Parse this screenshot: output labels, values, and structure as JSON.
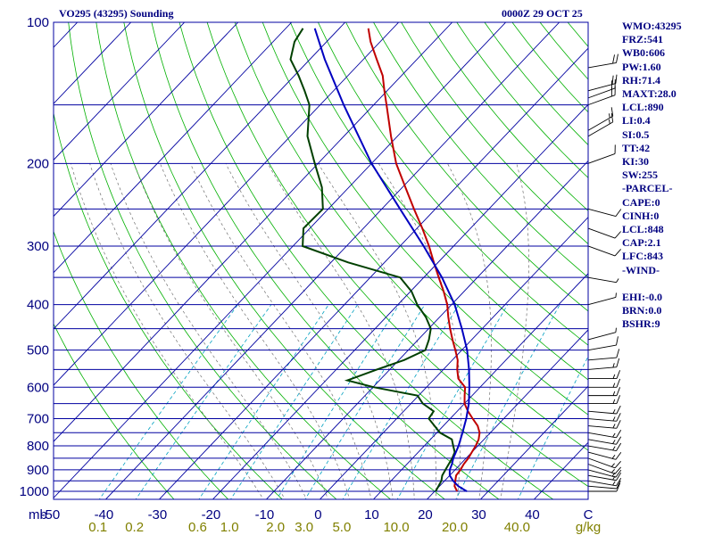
{
  "header": {
    "station": "VO295 (43295) Sounding",
    "time": "0000Z 29 OCT 25"
  },
  "indices": [
    "WMO:43295",
    "FRZ:541",
    "WB0:606",
    "PW:1.60",
    "RH:71.4",
    "MAXT:28.0",
    "LCL:890",
    "LI:0.4",
    "SI:0.5",
    "TT:42",
    "KI:30",
    "SW:255",
    "-PARCEL-",
    "CAPE:0",
    "CINH:0",
    "LCL:848",
    "CAP:2.1",
    "LFC:843",
    "-WIND-",
    "",
    "EHI:-0.0",
    "BRN:0.0",
    "BSHR:9"
  ],
  "colors": {
    "temperature": "#c00000",
    "dewpoint": "#004000",
    "parcel": "#0000c0",
    "isobar": "#0000a0",
    "isotherm": "#0000a0",
    "dry_adiabat": "#00b000",
    "moist_adiabat": "#707070",
    "mixing_ratio": "#00a0c0",
    "header_text": "#000080",
    "axis_text": "#000080",
    "mixing_label": "#808000"
  },
  "chart_data": {
    "type": "line",
    "subtype": "skew-T log-P",
    "title": "VO295 (43295) Sounding",
    "pressure_axis": {
      "unit_label": "mb",
      "range": [
        1050,
        100
      ],
      "labels": [
        "100",
        "200",
        "300",
        "400",
        "500",
        "600",
        "700",
        "800",
        "900",
        "1000"
      ],
      "label_values": [
        100,
        200,
        300,
        400,
        500,
        600,
        700,
        800,
        900,
        1000
      ],
      "isobars": [
        100,
        150,
        200,
        250,
        300,
        350,
        400,
        450,
        500,
        550,
        600,
        650,
        700,
        750,
        800,
        850,
        900,
        950,
        1000,
        1050
      ]
    },
    "temperature_axis": {
      "unit": "C",
      "labels": [
        "-50",
        "-40",
        "-30",
        "-20",
        "-10",
        "0",
        "10",
        "20",
        "30",
        "40"
      ],
      "label_values": [
        -50,
        -40,
        -30,
        -20,
        -10,
        0,
        10,
        20,
        30,
        40
      ],
      "end_label": "C"
    },
    "mixing_ratio_axis": {
      "unit": "g/kg",
      "labels": [
        "0.1",
        "0.2",
        "0.6",
        "1.0",
        "2.0",
        "3.0",
        "5.0",
        "10.0",
        "20.0",
        "40.0"
      ],
      "label_values": [
        0.1,
        0.2,
        0.6,
        1.0,
        2.0,
        3.0,
        5.0,
        10.0,
        20.0,
        40.0
      ]
    },
    "series": [
      {
        "name": "Temperature",
        "points": [
          [
            1000,
            24.2
          ],
          [
            975,
            22.8
          ],
          [
            950,
            22.0
          ],
          [
            925,
            21.2
          ],
          [
            900,
            21.0
          ],
          [
            875,
            20.6
          ],
          [
            850,
            20.4
          ],
          [
            825,
            20.0
          ],
          [
            800,
            19.6
          ],
          [
            775,
            19.0
          ],
          [
            750,
            18.0
          ],
          [
            725,
            16.4
          ],
          [
            700,
            14.2
          ],
          [
            675,
            12.0
          ],
          [
            650,
            10.0
          ],
          [
            625,
            8.6
          ],
          [
            600,
            7.2
          ],
          [
            575,
            4.4
          ],
          [
            550,
            2.6
          ],
          [
            525,
            1.0
          ],
          [
            500,
            -1.2
          ],
          [
            475,
            -3.6
          ],
          [
            450,
            -6.0
          ],
          [
            425,
            -8.4
          ],
          [
            400,
            -10.8
          ],
          [
            375,
            -13.8
          ],
          [
            350,
            -17.2
          ],
          [
            325,
            -20.8
          ],
          [
            300,
            -24.6
          ],
          [
            275,
            -29.0
          ],
          [
            250,
            -34.0
          ],
          [
            225,
            -39.4
          ],
          [
            200,
            -45.4
          ],
          [
            175,
            -51.2
          ],
          [
            150,
            -57.6
          ],
          [
            140,
            -60.5
          ],
          [
            130,
            -63.5
          ],
          [
            120,
            -67.5
          ],
          [
            110,
            -71.8
          ],
          [
            103,
            -74.6
          ]
        ]
      },
      {
        "name": "Dewpoint",
        "points": [
          [
            1000,
            20.2
          ],
          [
            975,
            19.8
          ],
          [
            950,
            19.4
          ],
          [
            925,
            18.6
          ],
          [
            900,
            18.2
          ],
          [
            875,
            17.8
          ],
          [
            850,
            17.4
          ],
          [
            825,
            16.8
          ],
          [
            800,
            15.4
          ],
          [
            775,
            14.0
          ],
          [
            750,
            10.6
          ],
          [
            700,
            6.0
          ],
          [
            675,
            5.6
          ],
          [
            650,
            2.2
          ],
          [
            625,
            -0.2
          ],
          [
            600,
            -9.8
          ],
          [
            580,
            -16.0
          ],
          [
            550,
            -12.4
          ],
          [
            525,
            -9.0
          ],
          [
            500,
            -6.8
          ],
          [
            475,
            -8.0
          ],
          [
            450,
            -9.6
          ],
          [
            425,
            -12.6
          ],
          [
            400,
            -16.4
          ],
          [
            375,
            -19.8
          ],
          [
            350,
            -24.4
          ],
          [
            325,
            -36.8
          ],
          [
            300,
            -48.2
          ],
          [
            275,
            -51.2
          ],
          [
            250,
            -51.0
          ],
          [
            225,
            -55.0
          ],
          [
            200,
            -60.6
          ],
          [
            175,
            -66.8
          ],
          [
            150,
            -72.0
          ],
          [
            140,
            -75.4
          ],
          [
            130,
            -79.2
          ],
          [
            120,
            -83.6
          ],
          [
            110,
            -86.0
          ],
          [
            103,
            -86.8
          ]
        ]
      },
      {
        "name": "Parcel",
        "points": [
          [
            1000,
            26.0
          ],
          [
            975,
            23.5
          ],
          [
            950,
            21.6
          ],
          [
            925,
            20.0
          ],
          [
            900,
            19.0
          ],
          [
            875,
            18.4
          ],
          [
            850,
            17.6
          ],
          [
            800,
            16.4
          ],
          [
            750,
            14.8
          ],
          [
            700,
            13.0
          ],
          [
            650,
            10.8
          ],
          [
            600,
            8.0
          ],
          [
            550,
            4.8
          ],
          [
            500,
            1.0
          ],
          [
            450,
            -3.8
          ],
          [
            400,
            -9.4
          ],
          [
            350,
            -16.6
          ],
          [
            300,
            -25.6
          ],
          [
            250,
            -36.6
          ],
          [
            200,
            -50.0
          ],
          [
            150,
            -65.6
          ],
          [
            120,
            -77.2
          ],
          [
            103,
            -84.6
          ]
        ]
      }
    ],
    "wind_barbs": [
      {
        "p": 1000,
        "dir": 90,
        "spd": 10
      },
      {
        "p": 975,
        "dir": 95,
        "spd": 10
      },
      {
        "p": 950,
        "dir": 100,
        "spd": 15
      },
      {
        "p": 925,
        "dir": 100,
        "spd": 15
      },
      {
        "p": 900,
        "dir": 105,
        "spd": 15
      },
      {
        "p": 875,
        "dir": 110,
        "spd": 15
      },
      {
        "p": 850,
        "dir": 110,
        "spd": 15
      },
      {
        "p": 825,
        "dir": 105,
        "spd": 15
      },
      {
        "p": 800,
        "dir": 100,
        "spd": 15
      },
      {
        "p": 775,
        "dir": 100,
        "spd": 15
      },
      {
        "p": 750,
        "dir": 100,
        "spd": 15
      },
      {
        "p": 725,
        "dir": 95,
        "spd": 15
      },
      {
        "p": 700,
        "dir": 95,
        "spd": 15
      },
      {
        "p": 675,
        "dir": 95,
        "spd": 15
      },
      {
        "p": 650,
        "dir": 90,
        "spd": 15
      },
      {
        "p": 625,
        "dir": 90,
        "spd": 15
      },
      {
        "p": 600,
        "dir": 90,
        "spd": 15
      },
      {
        "p": 575,
        "dir": 90,
        "spd": 15
      },
      {
        "p": 550,
        "dir": 85,
        "spd": 15
      },
      {
        "p": 525,
        "dir": 85,
        "spd": 10
      },
      {
        "p": 500,
        "dir": 80,
        "spd": 10
      },
      {
        "p": 475,
        "dir": 75,
        "spd": 5
      },
      {
        "p": 400,
        "dir": 75,
        "spd": 5
      },
      {
        "p": 350,
        "dir": 100,
        "spd": 5
      },
      {
        "p": 300,
        "dir": 110,
        "spd": 10
      },
      {
        "p": 275,
        "dir": 110,
        "spd": 10
      },
      {
        "p": 250,
        "dir": 105,
        "spd": 10
      },
      {
        "p": 200,
        "dir": 70,
        "spd": 10
      },
      {
        "p": 175,
        "dir": 60,
        "spd": 15
      },
      {
        "p": 170,
        "dir": 60,
        "spd": 15
      },
      {
        "p": 150,
        "dir": 70,
        "spd": 20
      },
      {
        "p": 145,
        "dir": 70,
        "spd": 20
      },
      {
        "p": 140,
        "dir": 75,
        "spd": 20
      },
      {
        "p": 125,
        "dir": 80,
        "spd": 20
      }
    ]
  }
}
